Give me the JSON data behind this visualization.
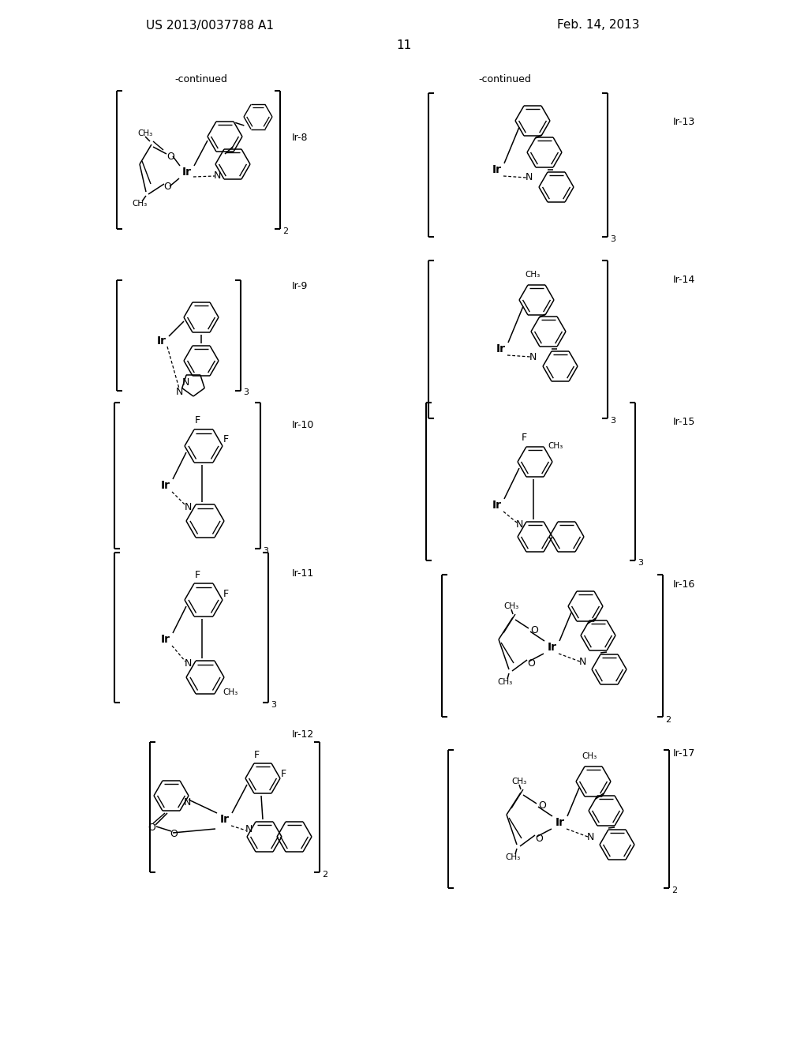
{
  "bg": "#ffffff",
  "lc": "#000000",
  "fc": "#000000",
  "header_left": "US 2013/0037788 A1",
  "header_right": "Feb. 14, 2013",
  "page_num": "11",
  "continued": "-continued"
}
